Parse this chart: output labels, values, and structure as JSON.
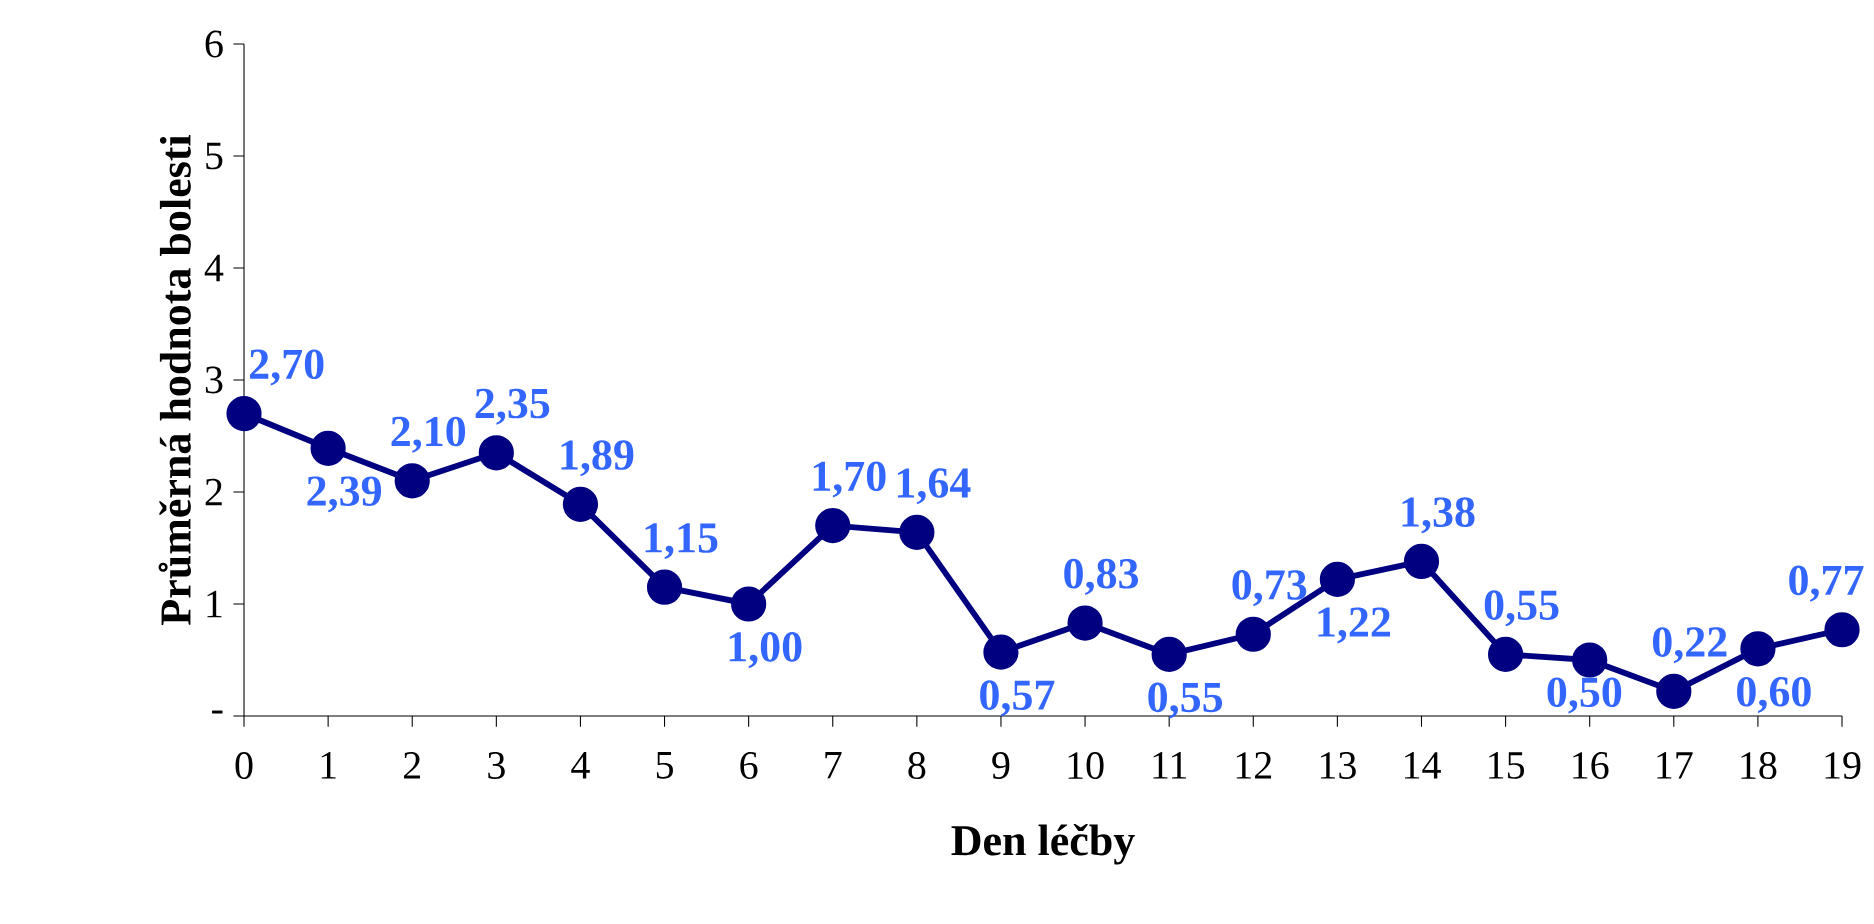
{
  "chart_data": {
    "type": "line",
    "xlabel": "Den léčby",
    "ylabel": "Průměrná hodnota bolesti",
    "x": [
      0,
      1,
      2,
      3,
      4,
      5,
      6,
      7,
      8,
      9,
      10,
      11,
      12,
      13,
      14,
      15,
      16,
      17,
      18,
      19
    ],
    "xlim": [
      0,
      19
    ],
    "xticks": [
      0,
      1,
      2,
      3,
      4,
      5,
      6,
      7,
      8,
      9,
      10,
      11,
      12,
      13,
      14,
      15,
      16,
      17,
      18,
      19
    ],
    "ylim": [
      0,
      6
    ],
    "yticks": [
      {
        "value": 0,
        "label": "-"
      },
      1,
      2,
      3,
      4,
      5,
      6
    ],
    "series": [
      {
        "color": "#000080",
        "values": [
          2.7,
          2.39,
          2.1,
          2.35,
          1.89,
          1.15,
          1.0,
          1.7,
          1.64,
          0.57,
          0.83,
          0.55,
          0.73,
          1.22,
          1.38,
          0.55,
          0.5,
          0.22,
          0.6,
          0.77
        ],
        "value_labels": [
          "2,70",
          "2,39",
          "2,10",
          "2,35",
          "1,89",
          "1,15",
          "1,00",
          "1,70",
          "1,64",
          "0,57",
          "0,83",
          "0,55",
          "0,73",
          "1,22",
          "1,38",
          "0,55",
          "0,50",
          "0,22",
          "0,60",
          "0,77"
        ]
      }
    ],
    "marker": "circle",
    "line_style": "solid"
  }
}
